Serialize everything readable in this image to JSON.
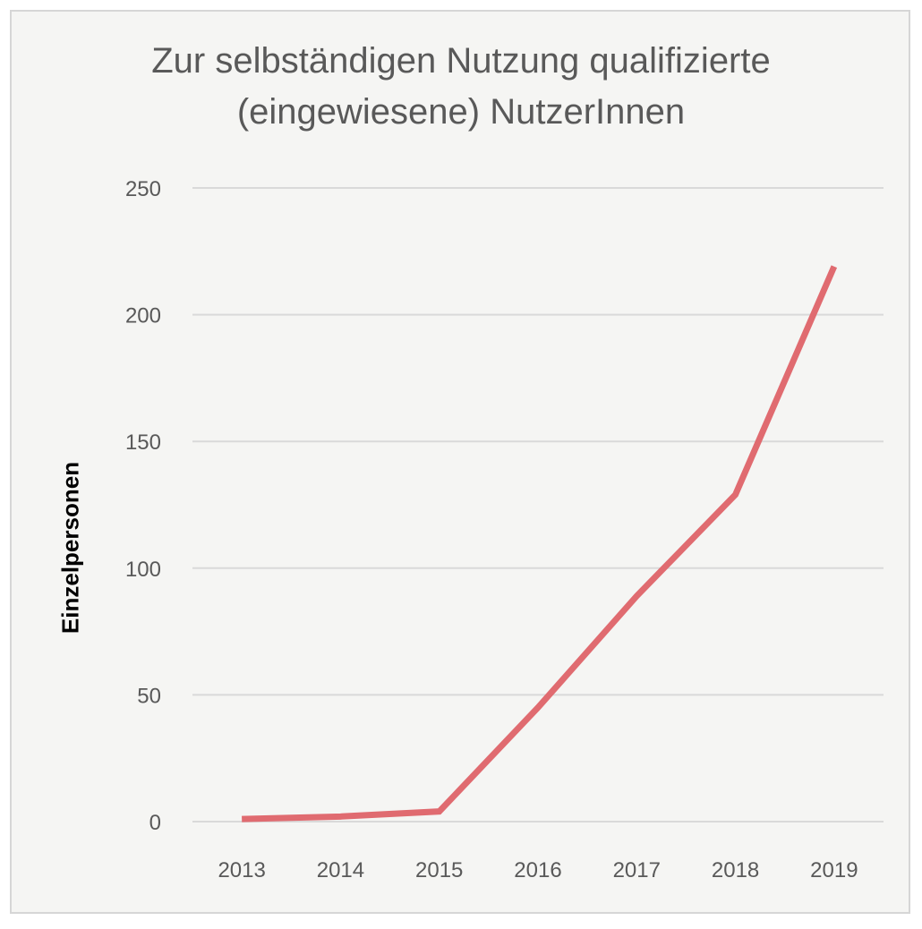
{
  "chart_data": {
    "type": "line",
    "title": "Zur selbständigen Nutzung qualifizierte (eingewiesene) NutzerInnen",
    "title_lines": [
      "Zur selbständigen Nutzung qualifizierte",
      "(eingewiesene) NutzerInnen"
    ],
    "xlabel": "",
    "ylabel": "Einzelpersonen",
    "categories": [
      "2013",
      "2014",
      "2015",
      "2016",
      "2017",
      "2018",
      "2019"
    ],
    "series": [
      {
        "values": [
          1,
          2,
          4,
          45,
          89,
          129,
          219
        ],
        "color": "#e06b70"
      }
    ],
    "ylim": [
      0,
      250
    ],
    "yticks": [
      0,
      50,
      100,
      150,
      200,
      250
    ],
    "grid": true,
    "legend": "none",
    "background": "#f5f5f3",
    "gridline_color": "#d9d9d9"
  }
}
